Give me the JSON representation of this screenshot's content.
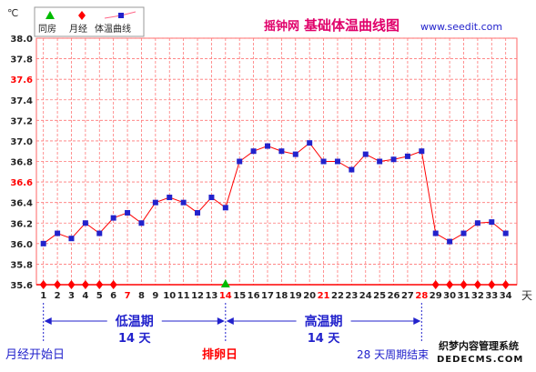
{
  "chart_data": {
    "type": "line",
    "title": "基础体温曲线图",
    "brand": "摇钟网",
    "website": "www.seedit.com",
    "y_unit": "℃",
    "x_unit": "天",
    "ylim": [
      35.6,
      38.0
    ],
    "y_ticks": [
      35.6,
      35.8,
      36.0,
      36.2,
      36.4,
      36.6,
      36.8,
      37.0,
      37.2,
      37.4,
      37.6,
      37.8,
      38.0
    ],
    "y_highlight_ticks": [
      37.6,
      36.6
    ],
    "grid": true,
    "legend": {
      "placement": "top-left",
      "entries": [
        {
          "label": "同房",
          "marker": "triangle",
          "color": "#00bb00"
        },
        {
          "label": "月经",
          "marker": "diamond",
          "color": "#ff0000"
        },
        {
          "label": "体温曲线",
          "marker": "square-line",
          "color": "#2222cc"
        }
      ]
    },
    "days": [
      1,
      2,
      3,
      4,
      5,
      6,
      7,
      8,
      9,
      10,
      11,
      12,
      13,
      14,
      15,
      16,
      17,
      18,
      19,
      20,
      21,
      22,
      23,
      24,
      25,
      26,
      27,
      28,
      29,
      30,
      31,
      32,
      33,
      34
    ],
    "highlight_days": [
      7,
      14,
      21,
      28
    ],
    "series": [
      {
        "values": [
          36.0,
          36.1,
          36.05,
          36.2,
          36.1,
          36.25,
          36.3,
          36.2,
          36.4,
          36.45,
          36.4,
          36.3,
          36.45,
          36.35,
          36.8,
          36.9,
          36.95,
          36.9,
          36.87,
          36.98,
          36.8,
          36.8,
          36.72,
          36.87,
          36.8,
          36.82,
          36.85,
          36.9,
          36.1,
          36.02,
          36.1,
          36.2,
          36.21,
          36.1
        ],
        "color": "#2222cc",
        "line_color": "#ff0000"
      }
    ],
    "menstruation_days": [
      1,
      2,
      3,
      4,
      5,
      6,
      29,
      30,
      31,
      32,
      33,
      34
    ],
    "intercourse_days": [
      14
    ],
    "phases": [
      {
        "label": "低温期",
        "days_label": "14 天",
        "start_day": 1,
        "end_day": 14
      },
      {
        "label": "高温期",
        "days_label": "14 天",
        "start_day": 14,
        "end_day": 28
      }
    ],
    "annotations": {
      "cycle_start": "月经开始日",
      "ovulation": "排卵日",
      "cycle_end": "28 天周期结束"
    },
    "watermark": "织梦内容管理系统",
    "watermark_url": "DEDECMS.COM"
  }
}
